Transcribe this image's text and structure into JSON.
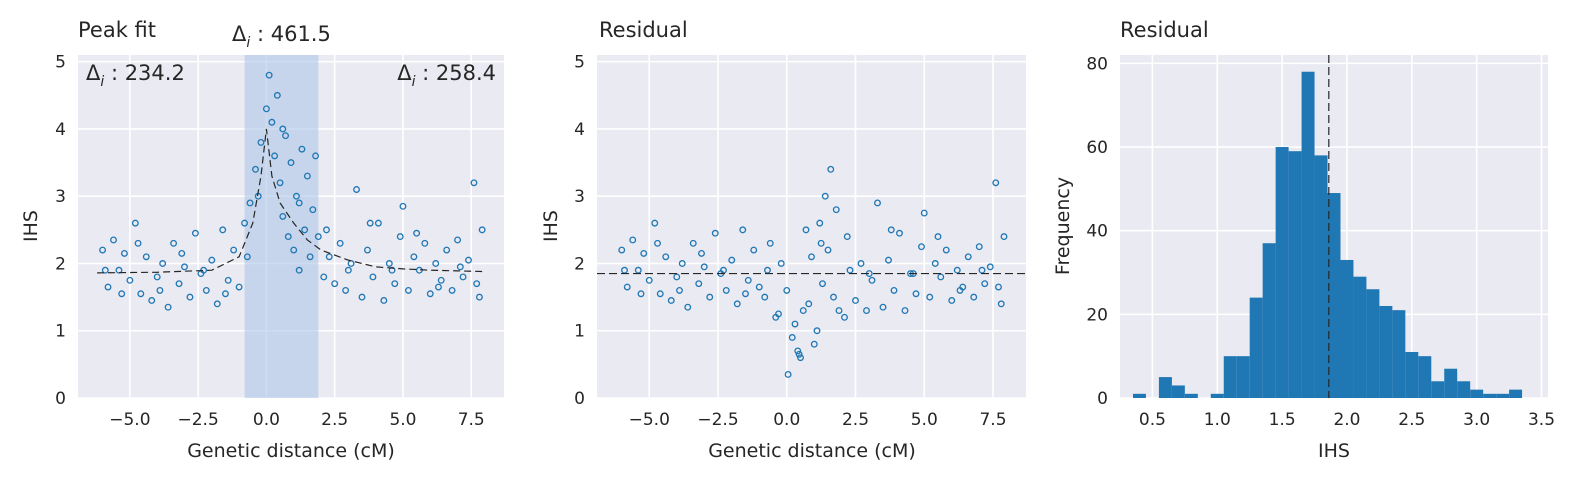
{
  "figure": {
    "background": "#ffffff"
  },
  "style": {
    "panel_bg": "#eaeaf2",
    "grid": "#ffffff",
    "series_color": "#1f77b4",
    "span_color": "#aec7e8",
    "text": "#262626"
  },
  "chart_data": [
    {
      "type": "scatter",
      "title": "Peak fit",
      "xlabel": "Genetic distance (cM)",
      "ylabel": "IHS",
      "xlim": [
        -6.9,
        8.7
      ],
      "ylim": [
        0,
        5.1
      ],
      "xticks": [
        -5.0,
        -2.5,
        0.0,
        2.5,
        5.0,
        7.5
      ],
      "xtick_labels": [
        "−5.0",
        "−2.5",
        "0.0",
        "2.5",
        "5.0",
        "7.5"
      ],
      "yticks": [
        0,
        1,
        2,
        3,
        4,
        5
      ],
      "ytick_labels": [
        "0",
        "1",
        "2",
        "3",
        "4",
        "5"
      ],
      "grid": true,
      "highlight_span": {
        "x": [
          -0.8,
          1.9
        ]
      },
      "fit_curve": {
        "style": "dashed",
        "x": [
          -6.2,
          -4.0,
          -2.0,
          -1.0,
          -0.5,
          -0.2,
          0.0,
          0.2,
          0.5,
          1.0,
          1.5,
          2.0,
          3.0,
          4.0,
          5.0,
          6.0,
          7.0,
          8.0
        ],
        "y": [
          1.86,
          1.87,
          1.9,
          2.1,
          2.6,
          3.3,
          4.0,
          3.3,
          2.9,
          2.6,
          2.35,
          2.2,
          2.05,
          1.95,
          1.92,
          1.9,
          1.89,
          1.88
        ]
      },
      "annotations": [
        {
          "position": "top-left",
          "symbol": "Δ",
          "sub": "i",
          "text": " : 234.2"
        },
        {
          "position": "top-center",
          "symbol": "Δ",
          "sub": "i",
          "text": " : 461.5"
        },
        {
          "position": "top-right",
          "symbol": "Δ",
          "sub": "i",
          "text": " : 258.4"
        }
      ],
      "series": [
        {
          "marker": "hollow-circle",
          "points": [
            [
              -6.0,
              2.2
            ],
            [
              -5.8,
              1.65
            ],
            [
              -5.6,
              2.35
            ],
            [
              -5.4,
              1.9
            ],
            [
              -5.2,
              2.15
            ],
            [
              -5.0,
              1.75
            ],
            [
              -4.8,
              2.6
            ],
            [
              -4.6,
              1.55
            ],
            [
              -4.4,
              2.1
            ],
            [
              -4.2,
              1.45
            ],
            [
              -4.0,
              1.8
            ],
            [
              -3.8,
              2.0
            ],
            [
              -3.6,
              1.35
            ],
            [
              -3.4,
              2.3
            ],
            [
              -3.2,
              1.7
            ],
            [
              -3.0,
              1.95
            ],
            [
              -2.8,
              1.5
            ],
            [
              -2.6,
              2.45
            ],
            [
              -2.4,
              1.85
            ],
            [
              -2.2,
              1.6
            ],
            [
              -2.0,
              2.05
            ],
            [
              -1.8,
              1.4
            ],
            [
              -1.6,
              2.5
            ],
            [
              -1.4,
              1.75
            ],
            [
              -1.2,
              2.2
            ],
            [
              -1.0,
              1.65
            ],
            [
              -0.8,
              2.6
            ],
            [
              -0.6,
              2.9
            ],
            [
              -0.4,
              3.4
            ],
            [
              -0.2,
              3.8
            ],
            [
              0.0,
              4.3
            ],
            [
              0.1,
              4.8
            ],
            [
              0.2,
              4.1
            ],
            [
              0.3,
              3.6
            ],
            [
              0.4,
              4.5
            ],
            [
              0.5,
              3.2
            ],
            [
              0.6,
              2.7
            ],
            [
              0.7,
              3.9
            ],
            [
              0.8,
              2.4
            ],
            [
              0.9,
              3.5
            ],
            [
              1.0,
              2.2
            ],
            [
              1.1,
              3.0
            ],
            [
              1.2,
              1.9
            ],
            [
              1.3,
              3.7
            ],
            [
              1.4,
              2.5
            ],
            [
              1.5,
              3.3
            ],
            [
              1.6,
              2.1
            ],
            [
              1.7,
              2.8
            ],
            [
              1.8,
              3.6
            ],
            [
              1.9,
              2.4
            ],
            [
              2.1,
              1.8
            ],
            [
              2.3,
              2.1
            ],
            [
              2.5,
              1.7
            ],
            [
              2.7,
              2.3
            ],
            [
              2.9,
              1.6
            ],
            [
              3.1,
              2.0
            ],
            [
              3.3,
              3.1
            ],
            [
              3.5,
              1.5
            ],
            [
              3.7,
              2.2
            ],
            [
              3.9,
              1.8
            ],
            [
              4.1,
              2.6
            ],
            [
              4.3,
              1.45
            ],
            [
              4.5,
              2.0
            ],
            [
              4.7,
              1.7
            ],
            [
              4.9,
              2.4
            ],
            [
              5.0,
              2.85
            ],
            [
              5.2,
              1.6
            ],
            [
              5.4,
              2.1
            ],
            [
              5.6,
              1.9
            ],
            [
              5.8,
              2.3
            ],
            [
              6.0,
              1.55
            ],
            [
              6.2,
              2.0
            ],
            [
              6.4,
              1.75
            ],
            [
              6.6,
              2.2
            ],
            [
              6.8,
              1.6
            ],
            [
              7.0,
              2.35
            ],
            [
              7.2,
              1.8
            ],
            [
              7.4,
              2.05
            ],
            [
              7.6,
              3.2
            ],
            [
              7.8,
              1.5
            ],
            [
              7.9,
              2.5
            ],
            [
              -5.9,
              1.9
            ],
            [
              -5.3,
              1.55
            ],
            [
              -4.7,
              2.3
            ],
            [
              -3.9,
              1.6
            ],
            [
              -3.1,
              2.15
            ],
            [
              -2.3,
              1.9
            ],
            [
              -1.5,
              1.55
            ],
            [
              -0.7,
              2.1
            ],
            [
              2.2,
              2.5
            ],
            [
              3.0,
              1.9
            ],
            [
              3.8,
              2.6
            ],
            [
              4.6,
              1.9
            ],
            [
              5.5,
              2.45
            ],
            [
              6.3,
              1.65
            ],
            [
              7.1,
              1.95
            ],
            [
              7.7,
              1.7
            ],
            [
              0.6,
              4.0
            ],
            [
              1.2,
              2.9
            ],
            [
              -0.3,
              3.0
            ]
          ]
        }
      ]
    },
    {
      "type": "scatter",
      "title": "Residual",
      "xlabel": "Genetic distance (cM)",
      "ylabel": "IHS",
      "xlim": [
        -6.9,
        8.7
      ],
      "ylim": [
        0,
        5.1
      ],
      "xticks": [
        -5.0,
        -2.5,
        0.0,
        2.5,
        5.0,
        7.5
      ],
      "xtick_labels": [
        "−5.0",
        "−2.5",
        "0.0",
        "2.5",
        "5.0",
        "7.5"
      ],
      "yticks": [
        0,
        1,
        2,
        3,
        4,
        5
      ],
      "ytick_labels": [
        "0",
        "1",
        "2",
        "3",
        "4",
        "5"
      ],
      "grid": true,
      "reference_line": {
        "y": 1.85,
        "style": "dashed"
      },
      "series": [
        {
          "marker": "hollow-circle",
          "points": [
            [
              -6.0,
              2.2
            ],
            [
              -5.8,
              1.65
            ],
            [
              -5.6,
              2.35
            ],
            [
              -5.4,
              1.9
            ],
            [
              -5.2,
              2.15
            ],
            [
              -5.0,
              1.75
            ],
            [
              -4.8,
              2.6
            ],
            [
              -4.6,
              1.55
            ],
            [
              -4.4,
              2.1
            ],
            [
              -4.2,
              1.45
            ],
            [
              -4.0,
              1.8
            ],
            [
              -3.8,
              2.0
            ],
            [
              -3.6,
              1.35
            ],
            [
              -3.4,
              2.3
            ],
            [
              -3.2,
              1.7
            ],
            [
              -3.0,
              1.95
            ],
            [
              -2.8,
              1.5
            ],
            [
              -2.6,
              2.45
            ],
            [
              -2.4,
              1.85
            ],
            [
              -2.2,
              1.6
            ],
            [
              -2.0,
              2.05
            ],
            [
              -1.8,
              1.4
            ],
            [
              -1.6,
              2.5
            ],
            [
              -1.4,
              1.75
            ],
            [
              -1.2,
              2.2
            ],
            [
              -1.0,
              1.65
            ],
            [
              -0.8,
              1.5
            ],
            [
              -0.6,
              2.3
            ],
            [
              -0.4,
              1.2
            ],
            [
              -0.2,
              2.0
            ],
            [
              0.0,
              1.6
            ],
            [
              0.2,
              0.9
            ],
            [
              0.3,
              1.1
            ],
            [
              0.4,
              0.7
            ],
            [
              0.5,
              0.6
            ],
            [
              0.6,
              1.3
            ],
            [
              0.7,
              2.5
            ],
            [
              0.8,
              1.4
            ],
            [
              0.9,
              2.1
            ],
            [
              1.0,
              0.8
            ],
            [
              1.1,
              1.0
            ],
            [
              1.2,
              2.6
            ],
            [
              1.3,
              1.7
            ],
            [
              1.4,
              3.0
            ],
            [
              1.5,
              2.2
            ],
            [
              1.6,
              3.4
            ],
            [
              1.7,
              1.5
            ],
            [
              1.8,
              2.8
            ],
            [
              0.05,
              0.35
            ],
            [
              1.9,
              1.3
            ],
            [
              2.1,
              1.2
            ],
            [
              2.3,
              1.9
            ],
            [
              2.5,
              1.45
            ],
            [
              2.7,
              2.0
            ],
            [
              2.9,
              1.3
            ],
            [
              3.1,
              1.75
            ],
            [
              3.3,
              2.9
            ],
            [
              3.5,
              1.35
            ],
            [
              3.7,
              2.05
            ],
            [
              3.9,
              1.6
            ],
            [
              4.1,
              2.45
            ],
            [
              4.3,
              1.3
            ],
            [
              4.5,
              1.85
            ],
            [
              4.7,
              1.55
            ],
            [
              4.9,
              2.25
            ],
            [
              5.0,
              2.75
            ],
            [
              5.2,
              1.5
            ],
            [
              5.4,
              2.0
            ],
            [
              5.6,
              1.8
            ],
            [
              5.8,
              2.2
            ],
            [
              6.0,
              1.45
            ],
            [
              6.2,
              1.9
            ],
            [
              6.4,
              1.65
            ],
            [
              6.6,
              2.1
            ],
            [
              6.8,
              1.5
            ],
            [
              7.0,
              2.25
            ],
            [
              7.2,
              1.7
            ],
            [
              7.4,
              1.95
            ],
            [
              7.6,
              3.2
            ],
            [
              7.8,
              1.4
            ],
            [
              7.9,
              2.4
            ],
            [
              -5.9,
              1.9
            ],
            [
              -5.3,
              1.55
            ],
            [
              -4.7,
              2.3
            ],
            [
              -3.9,
              1.6
            ],
            [
              -3.1,
              2.15
            ],
            [
              -2.3,
              1.9
            ],
            [
              -1.5,
              1.55
            ],
            [
              -0.7,
              1.9
            ],
            [
              2.2,
              2.4
            ],
            [
              3.0,
              1.85
            ],
            [
              3.8,
              2.5
            ],
            [
              4.6,
              1.85
            ],
            [
              5.5,
              2.4
            ],
            [
              6.3,
              1.6
            ],
            [
              7.1,
              1.9
            ],
            [
              7.7,
              1.65
            ],
            [
              0.45,
              0.65
            ],
            [
              1.25,
              2.3
            ],
            [
              -0.3,
              1.25
            ]
          ]
        }
      ]
    },
    {
      "type": "bar",
      "subtype": "histogram",
      "title": "Residual",
      "xlabel": "IHS",
      "ylabel": "Frequency",
      "xlim": [
        0.25,
        3.55
      ],
      "ylim": [
        0,
        82
      ],
      "xticks": [
        0.5,
        1.0,
        1.5,
        2.0,
        2.5,
        3.0,
        3.5
      ],
      "xtick_labels": [
        "0.5",
        "1.0",
        "1.5",
        "2.0",
        "2.5",
        "3.0",
        "3.5"
      ],
      "yticks": [
        0,
        20,
        40,
        60,
        80
      ],
      "ytick_labels": [
        "0",
        "20",
        "40",
        "60",
        "80"
      ],
      "grid": true,
      "reference_line": {
        "x": 1.86,
        "style": "dashed"
      },
      "bin_start": 0.35,
      "bin_width": 0.1,
      "values": [
        1,
        0,
        5,
        3,
        1,
        0,
        1,
        10,
        10,
        24,
        37,
        60,
        59,
        78,
        58,
        49,
        33,
        29,
        26,
        22,
        21,
        11,
        10,
        4,
        7,
        4,
        2,
        1,
        1,
        2
      ]
    }
  ]
}
